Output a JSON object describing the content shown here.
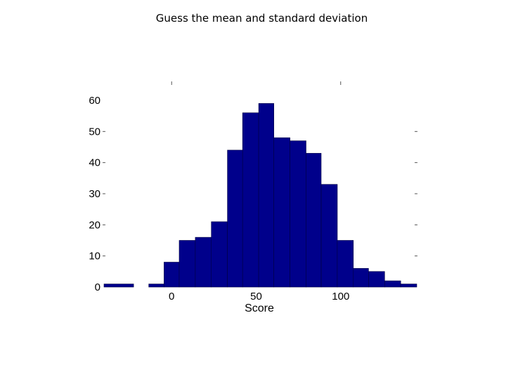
{
  "slide": {
    "title": "Guess the mean and standard deviation"
  },
  "chart_data": {
    "type": "bar",
    "title": "",
    "xlabel": "Score",
    "ylabel": "",
    "xlim": [
      -40,
      145
    ],
    "ylim": [
      0,
      60
    ],
    "xticks": [
      0,
      50,
      100
    ],
    "yticks": [
      0,
      10,
      20,
      30,
      40,
      50,
      60
    ],
    "grid": false,
    "legend": "none",
    "bar_color": "#00008b",
    "bins": [
      {
        "x0": -40.0,
        "x1": -22.5,
        "value": 1
      },
      {
        "x0": -13.5,
        "x1": -4.5,
        "value": 1
      },
      {
        "x0": -4.5,
        "x1": 4.5,
        "value": 8
      },
      {
        "x0": 4.5,
        "x1": 14.0,
        "value": 15
      },
      {
        "x0": 14.0,
        "x1": 23.5,
        "value": 16
      },
      {
        "x0": 23.5,
        "x1": 33.0,
        "value": 21
      },
      {
        "x0": 33.0,
        "x1": 42.0,
        "value": 44
      },
      {
        "x0": 42.0,
        "x1": 51.5,
        "value": 56
      },
      {
        "x0": 51.5,
        "x1": 60.5,
        "value": 59
      },
      {
        "x0": 60.5,
        "x1": 70.0,
        "value": 48
      },
      {
        "x0": 70.0,
        "x1": 79.5,
        "value": 47
      },
      {
        "x0": 79.5,
        "x1": 88.5,
        "value": 43
      },
      {
        "x0": 88.5,
        "x1": 98.0,
        "value": 33
      },
      {
        "x0": 98.0,
        "x1": 107.5,
        "value": 15
      },
      {
        "x0": 107.5,
        "x1": 116.5,
        "value": 6
      },
      {
        "x0": 116.5,
        "x1": 126.0,
        "value": 5
      },
      {
        "x0": 126.0,
        "x1": 135.5,
        "value": 2
      },
      {
        "x0": 135.5,
        "x1": 145.0,
        "value": 1
      }
    ]
  }
}
